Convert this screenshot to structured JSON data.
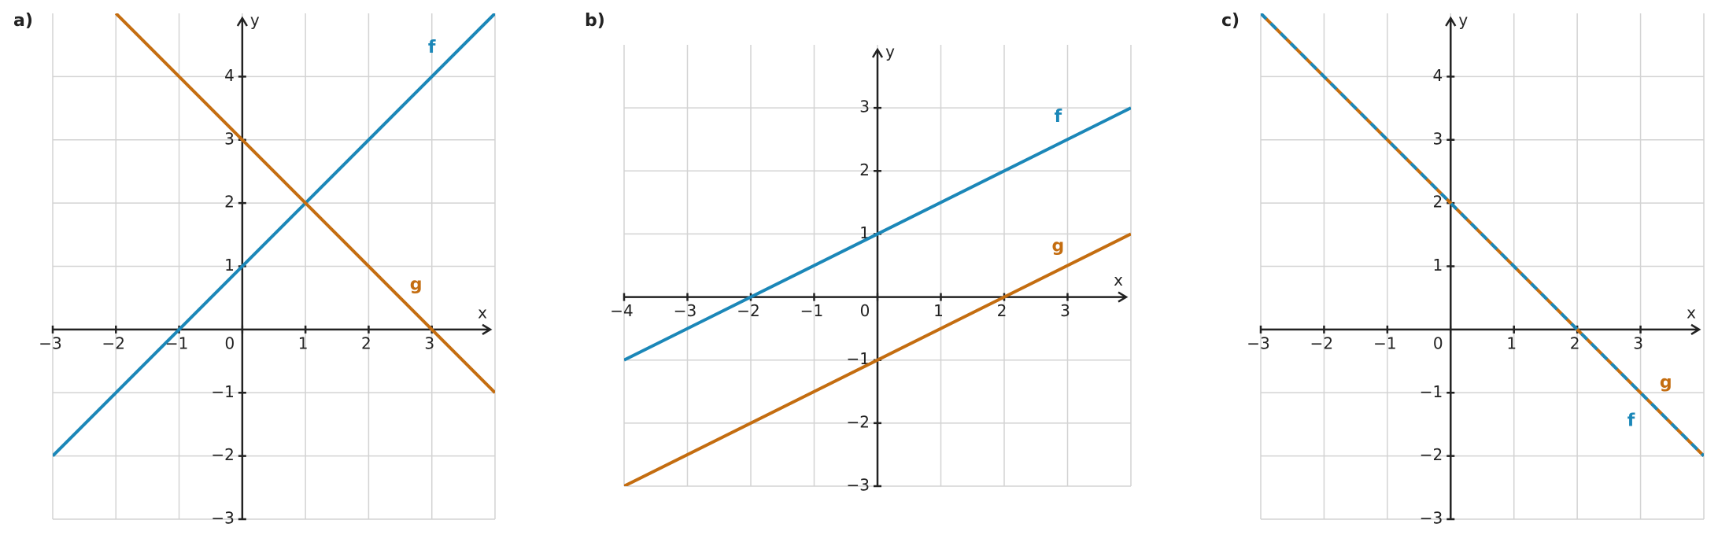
{
  "chart_data": [
    {
      "type": "line",
      "title": "a)",
      "xlabel": "x",
      "ylabel": "y",
      "xlim": [
        -3,
        4
      ],
      "ylim": [
        -3,
        5
      ],
      "xticks": [
        {
          "value": -3,
          "label": "−3"
        },
        {
          "value": -2,
          "label": "−2"
        },
        {
          "value": -1,
          "label": "−1"
        },
        0,
        1,
        2,
        3
      ],
      "yticks": [
        {
          "value": -3,
          "label": "−3"
        },
        {
          "value": -2,
          "label": "−2"
        },
        {
          "value": -1,
          "label": "−1"
        },
        1,
        2,
        3,
        4
      ],
      "grid": true,
      "series": [
        {
          "name": "f",
          "color": "#1b87b8",
          "x": [
            -3,
            4
          ],
          "values": [
            -2,
            5
          ]
        },
        {
          "name": "g",
          "color": "#c46d10",
          "x": [
            -2,
            4
          ],
          "values": [
            5,
            -1
          ]
        }
      ]
    },
    {
      "type": "line",
      "title": "b)",
      "xlabel": "x",
      "ylabel": "y",
      "xlim": [
        -4,
        4
      ],
      "ylim": [
        -3,
        4
      ],
      "xticks": [
        {
          "value": -4,
          "label": "−4"
        },
        {
          "value": -3,
          "label": "−3"
        },
        {
          "value": -2,
          "label": "−2"
        },
        {
          "value": -1,
          "label": "−1"
        },
        0,
        1,
        2,
        3
      ],
      "yticks": [
        {
          "value": -3,
          "label": "−3"
        },
        {
          "value": -2,
          "label": "−2"
        },
        {
          "value": -1,
          "label": "−1"
        },
        1,
        2,
        3
      ],
      "grid": true,
      "series": [
        {
          "name": "f",
          "color": "#1b87b8",
          "x": [
            -4,
            4
          ],
          "values": [
            -1,
            3
          ]
        },
        {
          "name": "g",
          "color": "#c46d10",
          "x": [
            -4,
            4
          ],
          "values": [
            -3,
            1
          ]
        }
      ]
    },
    {
      "type": "line",
      "title": "c)",
      "xlabel": "x",
      "ylabel": "y",
      "xlim": [
        -3,
        4
      ],
      "ylim": [
        -3,
        5
      ],
      "xticks": [
        {
          "value": -3,
          "label": "−3"
        },
        {
          "value": -2,
          "label": "−2"
        },
        {
          "value": -1,
          "label": "−1"
        },
        0,
        1,
        2,
        3
      ],
      "yticks": [
        {
          "value": -3,
          "label": "−3"
        },
        {
          "value": -2,
          "label": "−2"
        },
        {
          "value": -1,
          "label": "−1"
        },
        1,
        2,
        3,
        4
      ],
      "grid": true,
      "series": [
        {
          "name": "g",
          "color": "#c46d10",
          "x": [
            -3,
            4
          ],
          "values": [
            5,
            -2
          ]
        },
        {
          "name": "f",
          "color": "#1b87b8",
          "x": [
            -3,
            4
          ],
          "values": [
            5,
            -2
          ],
          "dashed": true
        }
      ]
    }
  ]
}
